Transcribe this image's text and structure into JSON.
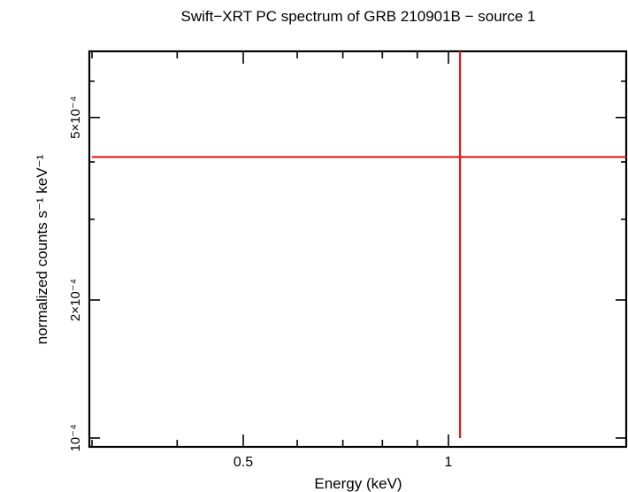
{
  "chart_data": {
    "type": "scatter",
    "title": "Swift−XRT PC spectrum of GRB 210901B − source 1",
    "xlabel": "Energy (keV)",
    "ylabel": "normalized counts s⁻¹ keV⁻¹",
    "x_scale": "log",
    "y_scale": "log",
    "xlim": [
      0.3,
      10
    ],
    "ylim": [
      0.0001,
      0.0007
    ],
    "x_ticks": [
      {
        "value": 0.5,
        "label": "0.5"
      },
      {
        "value": 1,
        "label": "1"
      }
    ],
    "y_ticks": [
      {
        "value": 0.0001,
        "label": "10⁻⁴"
      },
      {
        "value": 0.0002,
        "label": "2×10⁻⁴"
      },
      {
        "value": 0.0005,
        "label": "5×10⁻⁴"
      }
    ],
    "series": [
      {
        "color": "#e41a1c",
        "points": [
          {
            "x": 1.04,
            "y": 0.00041,
            "xerr": [
              0.3,
              10
            ],
            "yerr": [
              0.0001,
              0.0007
            ]
          }
        ]
      }
    ],
    "grid": false
  }
}
